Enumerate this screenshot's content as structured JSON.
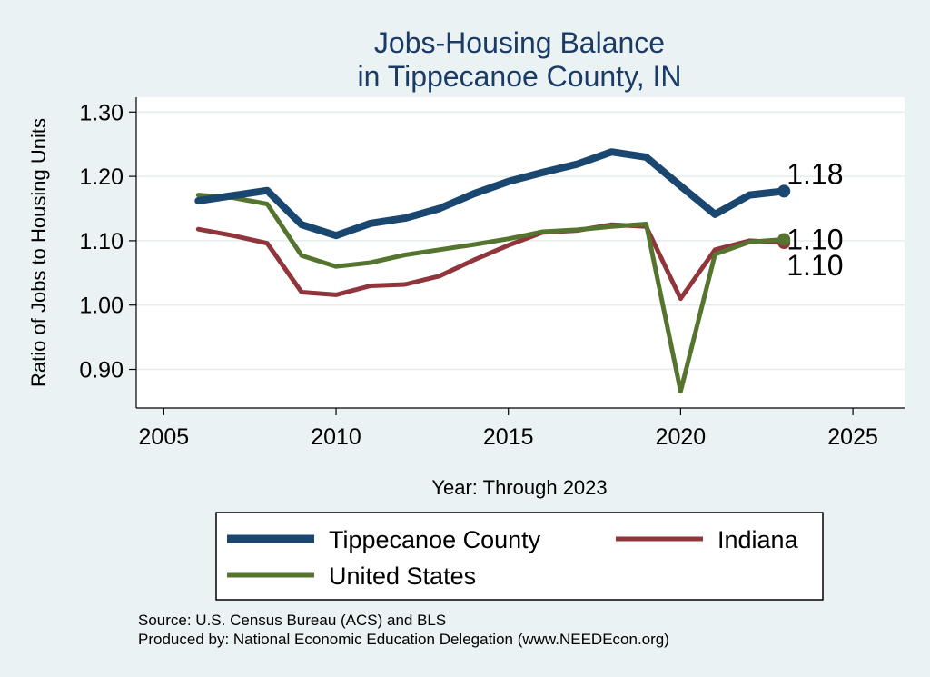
{
  "chart_data": {
    "type": "line",
    "title": [
      "Jobs-Housing Balance",
      "in Tippecanoe County, IN"
    ],
    "xlabel": "Year: Through 2023",
    "ylabel": "Ratio of Jobs to Housing Units",
    "xlim": [
      2004.2,
      2026.5
    ],
    "ylim": [
      0.84,
      1.323
    ],
    "xticks": [
      2005,
      2010,
      2015,
      2020,
      2025
    ],
    "xtick_labels": [
      "2005",
      "2010",
      "2015",
      "2020",
      "2025"
    ],
    "yticks": [
      0.9,
      1.0,
      1.1,
      1.2,
      1.3
    ],
    "ytick_labels": [
      "0.90",
      "1.00",
      "1.10",
      "1.20",
      "1.30"
    ],
    "grid": true,
    "x": [
      2006,
      2007,
      2008,
      2009,
      2010,
      2011,
      2012,
      2013,
      2014,
      2015,
      2016,
      2017,
      2018,
      2019,
      2020,
      2021,
      2022,
      2023
    ],
    "series": [
      {
        "name": "Tippecanoe County",
        "color": "#1a476f",
        "values": [
          1.162,
          1.17,
          1.178,
          1.125,
          1.108,
          1.127,
          1.135,
          1.15,
          1.173,
          1.192,
          1.206,
          1.219,
          1.238,
          1.23,
          1.185,
          1.141,
          1.171,
          1.177
        ],
        "end_label": "1.18"
      },
      {
        "name": "Indiana",
        "color": "#90353b",
        "values": [
          1.118,
          1.108,
          1.096,
          1.02,
          1.016,
          1.03,
          1.032,
          1.045,
          1.07,
          1.093,
          1.113,
          1.116,
          1.125,
          1.122,
          1.01,
          1.086,
          1.1,
          1.097
        ],
        "end_label": "1.10"
      },
      {
        "name": "United States",
        "color": "#55752f",
        "values": [
          1.171,
          1.167,
          1.157,
          1.077,
          1.06,
          1.066,
          1.078,
          1.086,
          1.094,
          1.103,
          1.114,
          1.117,
          1.122,
          1.126,
          0.866,
          1.079,
          1.098,
          1.102
        ],
        "end_label": "1.10"
      }
    ],
    "legend": {
      "placement": "bottom",
      "entries": [
        "Tippecanoe County",
        "Indiana",
        "United States"
      ]
    },
    "notes": [
      "Source: U.S. Census Bureau (ACS) and BLS",
      "Produced by: National Economic Education Delegation (www.NEEDEcon.org)"
    ]
  }
}
